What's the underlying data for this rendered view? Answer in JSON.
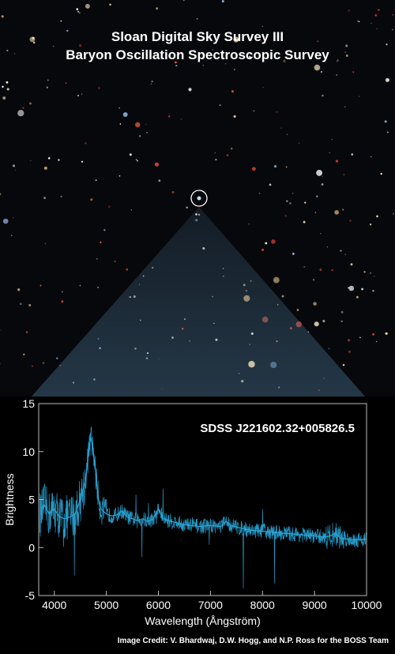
{
  "sky": {
    "title_line1": "Sloan Digital Sky Survey III",
    "title_line2": "Baryon Oscillation Spectroscopic Survey"
  },
  "credit": "Image Credit: V. Bhardwaj, D.W. Hogg, and N.P. Ross for the BOSS Team",
  "chart_data": {
    "type": "line",
    "annotation": "SDSS J221602.32+005826.5",
    "xlabel": "Wavelength (Ångström)",
    "ylabel": "Brightness",
    "xlim": [
      3700,
      10000
    ],
    "ylim": [
      -5,
      15
    ],
    "xticks": [
      4000,
      5000,
      6000,
      7000,
      8000,
      9000,
      10000
    ],
    "yticks": [
      -5,
      0,
      5,
      10,
      15
    ],
    "grid": false,
    "line_color": "#2aa7d9",
    "series": [
      {
        "x": [
          3750,
          3800,
          3900,
          4000,
          4100,
          4200,
          4300,
          4400,
          4500,
          4600,
          4650,
          4700,
          4750,
          4800,
          4850,
          4900,
          5000,
          5100,
          5200,
          5300,
          5400,
          5500,
          5600,
          5700,
          5800,
          5900,
          6000,
          6100,
          6200,
          6400,
          6600,
          6800,
          7000,
          7200,
          7300,
          7400,
          7600,
          7800,
          8000,
          8200,
          8400,
          8600,
          8800,
          9000,
          9200,
          9300,
          9400,
          9500,
          9600,
          9800,
          10000
        ],
        "y": [
          3.5,
          4.5,
          3.5,
          4.0,
          3.2,
          3.0,
          3.2,
          3.5,
          5.0,
          7.0,
          9.5,
          11.5,
          10.0,
          7.5,
          5.0,
          4.0,
          3.5,
          3.3,
          3.4,
          3.8,
          3.2,
          3.0,
          2.8,
          3.0,
          2.7,
          3.0,
          4.0,
          3.0,
          2.8,
          2.5,
          2.3,
          2.2,
          2.3,
          2.2,
          2.7,
          2.3,
          2.0,
          1.8,
          1.7,
          1.6,
          1.5,
          1.4,
          1.3,
          1.2,
          1.1,
          1.2,
          1.5,
          1.0,
          0.9,
          0.8,
          0.9
        ]
      }
    ]
  }
}
